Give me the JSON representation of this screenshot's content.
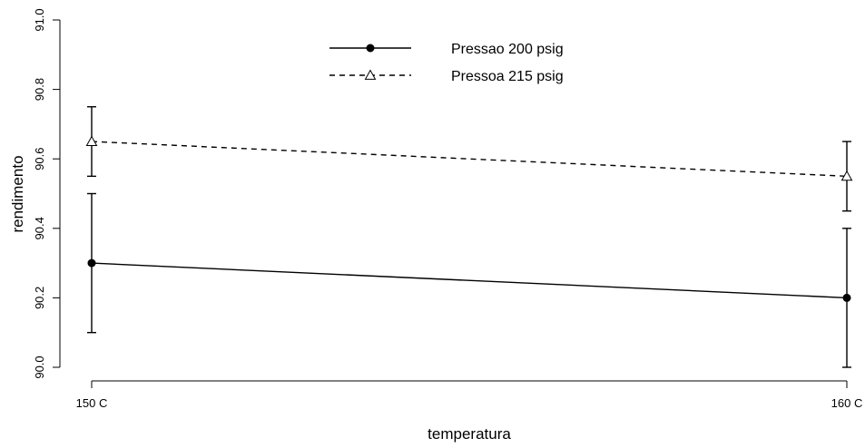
{
  "chart_data": {
    "type": "line",
    "title": "",
    "xlabel": "temperatura",
    "ylabel": "rendimento",
    "categories": [
      "150 C",
      "160 C"
    ],
    "ylim": [
      90.0,
      91.0
    ],
    "yticks": [
      "90.0",
      "90.2",
      "90.4",
      "90.6",
      "90.8",
      "91.0"
    ],
    "grid": false,
    "legend_position": "top-center",
    "series": [
      {
        "name": "Pressao 200 psig",
        "values": [
          90.3,
          90.2
        ],
        "error_low": [
          90.1,
          90.0
        ],
        "error_high": [
          90.5,
          90.4
        ],
        "line_style": "solid",
        "marker": "filled-circle",
        "color": "#000000"
      },
      {
        "name": "Pressoa 215 psig",
        "values": [
          90.65,
          90.55
        ],
        "error_low": [
          90.55,
          90.45
        ],
        "error_high": [
          90.75,
          90.65
        ],
        "line_style": "dashed",
        "marker": "open-triangle",
        "color": "#000000"
      }
    ]
  }
}
